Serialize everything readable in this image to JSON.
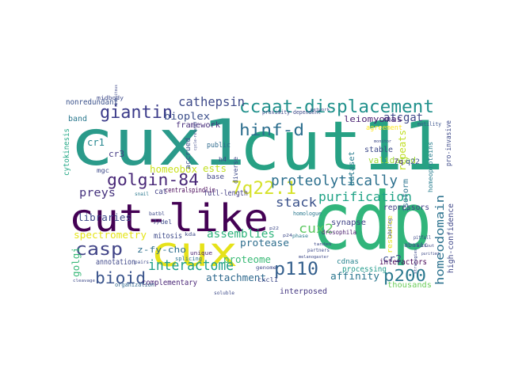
{
  "words": [
    {
      "text": "cux1",
      "color": "#2a9a8a"
    },
    {
      "text": "cut11",
      "color": "#27a184"
    },
    {
      "text": "cdp",
      "color": "#31b57b"
    },
    {
      "text": "cut-like",
      "color": "#440154"
    },
    {
      "text": "cux",
      "color": "#e6e219"
    },
    {
      "text": "ccaat-displacement",
      "color": "#21918c"
    },
    {
      "text": "golgin-84",
      "color": "#482777"
    },
    {
      "text": "giantin",
      "color": "#3b3b8a"
    },
    {
      "text": "hinf-d",
      "color": "#2c6e8e"
    },
    {
      "text": "7q22.1",
      "color": "#d6e22b"
    },
    {
      "text": "proteolytically",
      "color": "#2d708e"
    },
    {
      "text": "cathepsin",
      "color": "#3e4a89"
    },
    {
      "text": "casp",
      "color": "#414487"
    },
    {
      "text": "bioid",
      "color": "#3a548c"
    },
    {
      "text": "interactome",
      "color": "#1f9e89"
    },
    {
      "text": "p110",
      "color": "#35608d"
    },
    {
      "text": "p200",
      "color": "#2a788e"
    },
    {
      "text": "cux2",
      "color": "#5ec962"
    },
    {
      "text": "homeodomain",
      "color": "#2c728e"
    },
    {
      "text": "purification",
      "color": "#20a386"
    },
    {
      "text": "stack",
      "color": "#3b528b"
    },
    {
      "text": "assemblies",
      "color": "#2fb47c"
    },
    {
      "text": "spectrometry",
      "color": "#e5e419"
    },
    {
      "text": "libraries",
      "color": "#3e4989"
    },
    {
      "text": "preys",
      "color": "#46337e"
    },
    {
      "text": "z-fy-cho",
      "color": "#2e6f8e"
    },
    {
      "text": "bioplex",
      "color": "#3c4f8a"
    },
    {
      "text": "framework",
      "color": "#472d7b"
    },
    {
      "text": "atcgat",
      "color": "#3f4788"
    },
    {
      "text": "leiomyomas",
      "color": "#481f70"
    },
    {
      "text": "repeats",
      "color": "#c0df25"
    },
    {
      "text": "ests",
      "color": "#c2df23"
    },
    {
      "text": "protease",
      "color": "#2e6e8e"
    },
    {
      "text": "proteome",
      "color": "#3aba76"
    },
    {
      "text": "attachment",
      "color": "#306a8e"
    },
    {
      "text": "affinity",
      "color": "#2a768e"
    },
    {
      "text": "cr2",
      "color": "#3e4c8a"
    },
    {
      "text": "cr1",
      "color": "#24868e"
    },
    {
      "text": "cr3",
      "color": "#443983"
    },
    {
      "text": "golgi",
      "color": "#37b878"
    },
    {
      "text": "interposed",
      "color": "#453882"
    },
    {
      "text": "complementary",
      "color": "#482475"
    },
    {
      "text": "annotation",
      "color": "#3f4889"
    },
    {
      "text": "mitosis",
      "color": "#3e4a89"
    },
    {
      "text": "homeobox",
      "color": "#cae11f"
    },
    {
      "text": "full-length",
      "color": "#433e85"
    },
    {
      "text": "centralspindlin",
      "color": "#440154"
    },
    {
      "text": "cat",
      "color": "#424086"
    },
    {
      "text": "synapse",
      "color": "#414487"
    },
    {
      "text": "validated",
      "color": "#a2da37"
    },
    {
      "text": "stable",
      "color": "#3e4a89"
    },
    {
      "text": "isoform",
      "color": "#2c738e"
    },
    {
      "text": "processing",
      "color": "#1f9a8a"
    },
    {
      "text": "cdnas",
      "color": "#25838e"
    },
    {
      "text": "interactors",
      "color": "#440154"
    },
    {
      "text": "thousands",
      "color": "#6ccd5a"
    },
    {
      "text": "high-confidence",
      "color": "#3f4788"
    },
    {
      "text": "repressors",
      "color": "#424186"
    },
    {
      "text": "resource",
      "color": "#e5e419"
    },
    {
      "text": "dataset",
      "color": "#287c8e"
    },
    {
      "text": "q22",
      "color": "#3b528b"
    },
    {
      "text": "7q",
      "color": "#46327e"
    },
    {
      "text": "agreement",
      "color": "#fde725"
    },
    {
      "text": "motility",
      "color": "#3a548c"
    },
    {
      "text": "homeoproteins",
      "color": "#287d8e"
    },
    {
      "text": "pro-invasive",
      "color": "#3e4a89"
    },
    {
      "text": "nonredundant",
      "color": "#3b528b"
    },
    {
      "text": "band",
      "color": "#2a788e"
    },
    {
      "text": "cytokinesis",
      "color": "#22a785"
    },
    {
      "text": "accrued",
      "color": "#3b518b"
    },
    {
      "text": "public",
      "color": "#2f6b8e"
    },
    {
      "text": "h4",
      "color": "#3e4a89"
    },
    {
      "text": "diverse",
      "color": "#3e4a89"
    },
    {
      "text": "base",
      "color": "#404688"
    },
    {
      "text": "abasic",
      "color": "#3d4e8a"
    },
    {
      "text": "cxcl1",
      "color": "#3e4989"
    },
    {
      "text": "drosophila",
      "color": "#481a6c"
    },
    {
      "text": "midbody",
      "color": "#3e4a89"
    },
    {
      "text": "splicing",
      "color": "#2b748e"
    },
    {
      "text": "organization",
      "color": "#31688e"
    },
    {
      "text": "unique",
      "color": "#482071"
    },
    {
      "text": "genome",
      "color": "#3e4a89"
    },
    {
      "text": "phase",
      "color": "#2a788e"
    },
    {
      "text": "soluble",
      "color": "#3e4a89"
    },
    {
      "text": "pairs",
      "color": "#3e4a89"
    },
    {
      "text": "7/del",
      "color": "#3e4a89"
    },
    {
      "text": "kda",
      "color": "#3e4a89"
    },
    {
      "text": "batbl",
      "color": "#3e4a89"
    },
    {
      "text": "snail",
      "color": "#2a788e"
    },
    {
      "text": "mgc",
      "color": "#3e4a89"
    },
    {
      "text": "ubiquitous",
      "color": "#3e4a89"
    },
    {
      "text": "homologue",
      "color": "#2a788e"
    },
    {
      "text": "network",
      "color": "#3e4a89"
    },
    {
      "text": "proximity-dependent",
      "color": "#3e4a89"
    },
    {
      "text": "monitor",
      "color": "#3e4a89"
    },
    {
      "text": "strategies",
      "color": "#3e4a89"
    },
    {
      "text": "tandem",
      "color": "#3e4a89"
    },
    {
      "text": "partners",
      "color": "#3e4a89"
    },
    {
      "text": "purified",
      "color": "#3e4a89"
    },
    {
      "text": "labeling",
      "color": "#3e4a89"
    },
    {
      "text": "melanogaster",
      "color": "#3e4a89"
    },
    {
      "text": "cleavage",
      "color": "#3e4a89"
    },
    {
      "text": "cycle-related",
      "color": "#3e4a89"
    },
    {
      "text": "pitfall",
      "color": "#3e4a89"
    },
    {
      "text": "without",
      "color": "#3e4a89"
    },
    {
      "text": "p24",
      "color": "#3e4a89"
    },
    {
      "text": "p22",
      "color": "#3e4a89"
    }
  ]
}
